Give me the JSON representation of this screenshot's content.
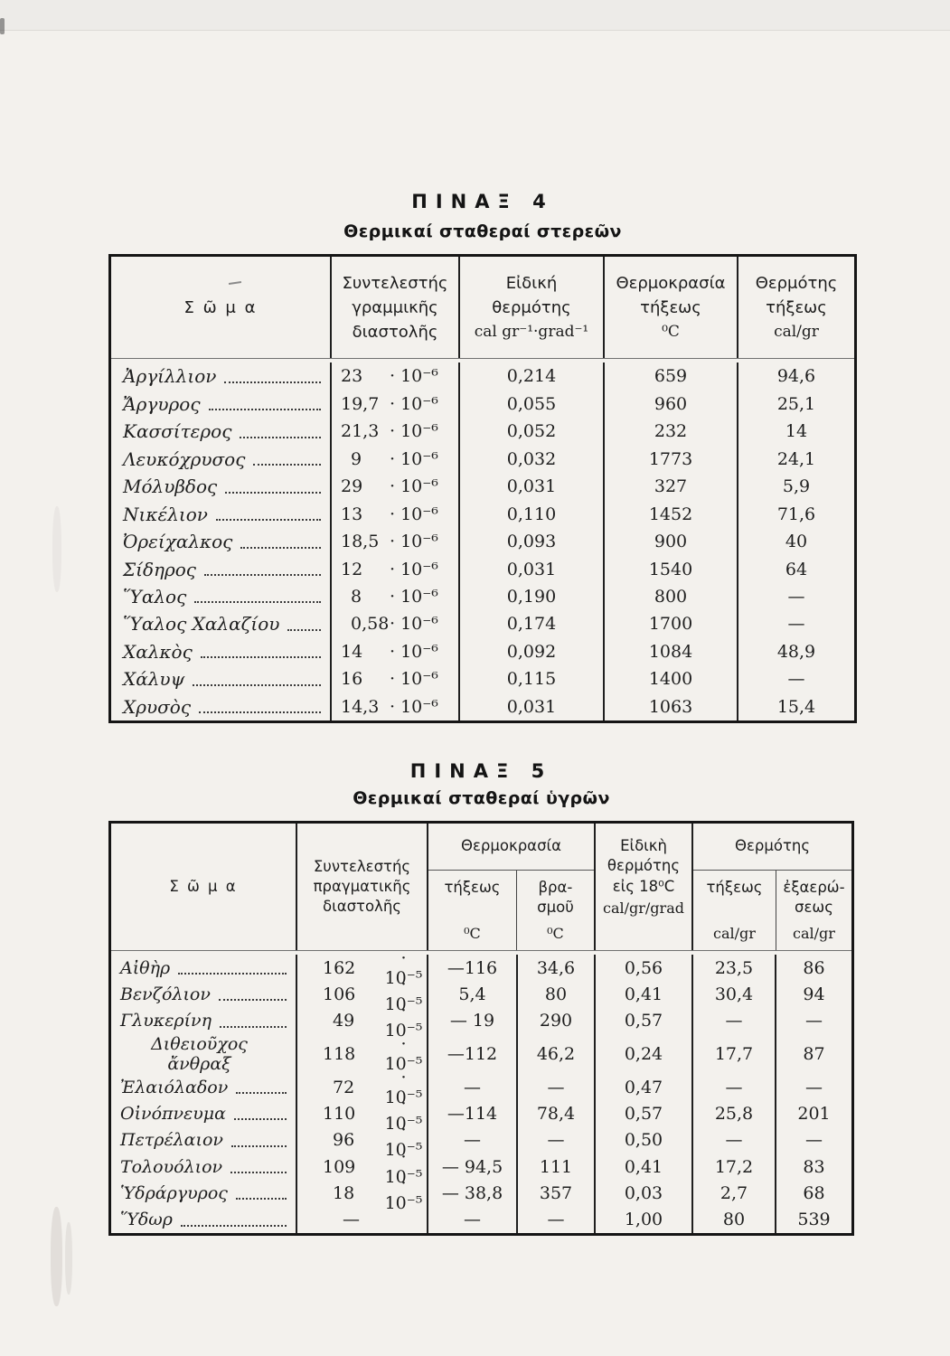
{
  "colors": {
    "paper": "#f3f1ed",
    "ink": "#1e1e1e",
    "frame": "#151515",
    "rule": "#707070"
  },
  "table4": {
    "title": "ΠΙΝΑΞ 4",
    "subtitle": "Θερμικαί σταθεραί στερεῶν",
    "headers": {
      "body": "Σ ῶ μ α",
      "coef": "Συντελεστής\nγραμμικῆς\nδιαστολῆς",
      "sp_heat": "Εἰδική\nθερμότης",
      "sp_heat_unit": "cal gr⁻¹·grad⁻¹",
      "melt_temp": "Θερμοκρασία\nτήξεως",
      "melt_temp_unit": "⁰C",
      "fusion_heat": "Θερμότης\nτήξεως",
      "fusion_heat_unit": "cal/gr"
    },
    "rows": [
      {
        "name": "Ἀργίλλιον",
        "coef_v": "23",
        "coef_u": "· 10⁻⁶",
        "sp_heat": "0,214",
        "melt_temp": "659",
        "fusion_heat": "94,6"
      },
      {
        "name": "Ἄργυρος",
        "coef_v": "19,7",
        "coef_u": "· 10⁻⁶",
        "sp_heat": "0,055",
        "melt_temp": "960",
        "fusion_heat": "25,1"
      },
      {
        "name": "Κασσίτερος",
        "coef_v": "21,3",
        "coef_u": "· 10⁻⁶",
        "sp_heat": "0,052",
        "melt_temp": "232",
        "fusion_heat": "14"
      },
      {
        "name": "Λευκόχρυσος",
        "coef_v": "9",
        "coef_u": "· 10⁻⁶",
        "sp_heat": "0,032",
        "melt_temp": "1773",
        "fusion_heat": "24,1"
      },
      {
        "name": "Μόλυβδος",
        "coef_v": "29",
        "coef_u": "· 10⁻⁶",
        "sp_heat": "0,031",
        "melt_temp": "327",
        "fusion_heat": "5,9"
      },
      {
        "name": "Νικέλιον",
        "coef_v": "13",
        "coef_u": "· 10⁻⁶",
        "sp_heat": "0,110",
        "melt_temp": "1452",
        "fusion_heat": "71,6"
      },
      {
        "name": "Ὀρείχαλκος",
        "coef_v": "18,5",
        "coef_u": "· 10⁻⁶",
        "sp_heat": "0,093",
        "melt_temp": "900",
        "fusion_heat": "40"
      },
      {
        "name": "Σίδηρος",
        "coef_v": "12",
        "coef_u": "· 10⁻⁶",
        "sp_heat": "0,031",
        "melt_temp": "1540",
        "fusion_heat": "64"
      },
      {
        "name": "Ὕαλος",
        "coef_v": "8",
        "coef_u": "· 10⁻⁶",
        "sp_heat": "0,190",
        "melt_temp": "800",
        "fusion_heat": "—"
      },
      {
        "name": "Ὕαλος Χαλαζίου",
        "coef_v": "0,58",
        "coef_u": "· 10⁻⁶",
        "sp_heat": "0,174",
        "melt_temp": "1700",
        "fusion_heat": "—"
      },
      {
        "name": "Χαλκὸς",
        "coef_v": "14",
        "coef_u": "· 10⁻⁶",
        "sp_heat": "0,092",
        "melt_temp": "1084",
        "fusion_heat": "48,9"
      },
      {
        "name": "Χάλυψ",
        "coef_v": "16",
        "coef_u": "· 10⁻⁶",
        "sp_heat": "0,115",
        "melt_temp": "1400",
        "fusion_heat": "—"
      },
      {
        "name": "Χρυσὸς",
        "coef_v": "14,3",
        "coef_u": "· 10⁻⁶",
        "sp_heat": "0,031",
        "melt_temp": "1063",
        "fusion_heat": "15,4"
      }
    ]
  },
  "table5": {
    "title": "ΠΙΝΑΞ 5",
    "subtitle": "Θερμικαί σταθεραί ὑγρῶν",
    "headers": {
      "body": "Σ ῶ μ α",
      "coef": "Συντελεστής\nπραγματικῆς\nδιαστολῆς",
      "temp_group": "Θερμοκρασία",
      "melt": "τήξεως",
      "melt_unit": "⁰C",
      "boil": "βρα-\nσμοῦ",
      "boil_unit": "⁰C",
      "sp_heat": "Εἰδικὴ\nθερμότης\nεἰς 18⁰C",
      "sp_heat_unit": "cal/gr/grad",
      "heat_group": "Θερμότης",
      "fusion": "τήξεως",
      "fusion_unit": "cal/gr",
      "vapor": "ἐξαερώ-\nσεως",
      "vapor_unit": "cal/gr"
    },
    "rows": [
      {
        "name": "Αἰθὴρ",
        "coef_v": "162",
        "coef_u": "· 10⁻⁵",
        "melt": "—116",
        "boil": "34,6",
        "sp": "0,56",
        "fus": "23,5",
        "vap": "86"
      },
      {
        "name": "Βενζόλιον",
        "coef_v": "106",
        "coef_u": "· 10⁻⁵",
        "melt": "5,4",
        "boil": "80",
        "sp": "0,41",
        "fus": "30,4",
        "vap": "94"
      },
      {
        "name": "Γλυκερίνη",
        "coef_v": "49",
        "coef_u": "· 10⁻⁵",
        "melt": "— 19",
        "boil": "290",
        "sp": "0,57",
        "fus": "—",
        "vap": "—"
      },
      {
        "name": "Διθειοῦχος ἄνθραξ",
        "coef_v": "118",
        "coef_u": "· 10⁻⁵",
        "melt": "—112",
        "boil": "46,2",
        "sp": "0,24",
        "fus": "17,7",
        "vap": "87"
      },
      {
        "name": "Ἐλαιόλαδον",
        "coef_v": "72",
        "coef_u": "· 10⁻⁵",
        "melt": "—",
        "boil": "—",
        "sp": "0,47",
        "fus": "—",
        "vap": "—"
      },
      {
        "name": "Οἰνόπνευμα",
        "coef_v": "110",
        "coef_u": "· 10⁻⁵",
        "melt": "—114",
        "boil": "78,4",
        "sp": "0,57",
        "fus": "25,8",
        "vap": "201"
      },
      {
        "name": "Πετρέλαιον",
        "coef_v": "96",
        "coef_u": "· 10⁻⁵",
        "melt": "—",
        "boil": "—",
        "sp": "0,50",
        "fus": "—",
        "vap": "—"
      },
      {
        "name": "Τολουόλιον",
        "coef_v": "109",
        "coef_u": "· 10⁻⁵",
        "melt": "— 94,5",
        "boil": "111",
        "sp": "0,41",
        "fus": "17,2",
        "vap": "83"
      },
      {
        "name": "Ὑδράργυρος",
        "coef_v": "18",
        "coef_u": "· 10⁻⁵",
        "melt": "— 38,8",
        "boil": "357",
        "sp": "0,03",
        "fus": "2,7",
        "vap": "68"
      },
      {
        "name": "Ὕδωρ",
        "coef_v": "—",
        "coef_u": "",
        "melt": "—",
        "boil": "—",
        "sp": "1,00",
        "fus": "80",
        "vap": "539"
      }
    ]
  }
}
